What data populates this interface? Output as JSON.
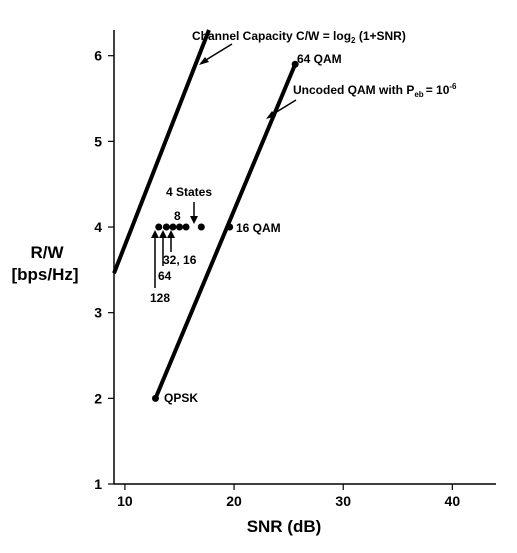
{
  "chart_data": {
    "type": "line",
    "xlabel": "SNR (dB)",
    "ylabel_line1": "R/W",
    "ylabel_line2": "[bps/Hz]",
    "xlim": [
      9,
      44
    ],
    "ylim": [
      1,
      6.3
    ],
    "x_ticks": [
      10,
      20,
      30,
      40
    ],
    "y_ticks": [
      1,
      2,
      3,
      4,
      5,
      6
    ],
    "x_tick_labels": [
      "10",
      "20",
      "30",
      "40"
    ],
    "y_tick_labels": [
      "1",
      "2",
      "3",
      "4",
      "5",
      "6"
    ],
    "grid": false,
    "series": [
      {
        "key": "capacity",
        "x": [
          9,
          17.7
        ],
        "y": [
          3.46,
          6.3
        ]
      },
      {
        "key": "uncoded",
        "x": [
          12.8,
          25.6
        ],
        "y": [
          2,
          5.9
        ]
      }
    ],
    "points": [
      {
        "key": "qpsk",
        "x": 12.8,
        "y": 2,
        "label": "QPSK"
      },
      {
        "key": "qam16",
        "x": 19.6,
        "y": 4,
        "label": "16 QAM"
      },
      {
        "key": "qam64",
        "x": 25.6,
        "y": 5.9,
        "label": "64 QAM"
      },
      {
        "key": "tcm128",
        "x": 13.1,
        "y": 4
      },
      {
        "key": "tcm64",
        "x": 13.8,
        "y": 4
      },
      {
        "key": "tcm32",
        "x": 14.4,
        "y": 4
      },
      {
        "key": "tcm16",
        "x": 15.0,
        "y": 4
      },
      {
        "key": "tcm8",
        "x": 15.6,
        "y": 4
      },
      {
        "key": "tcm4",
        "x": 17.0,
        "y": 4
      }
    ],
    "annotations": {
      "capacity_label": "Channel Capacity C/W = log",
      "capacity_sub": "2",
      "capacity_rest": " (1+SNR)",
      "uncoded_label": "Uncoded QAM with P",
      "uncoded_sub": "eb",
      "uncoded_eq": "= 10",
      "uncoded_sup": "-6",
      "states_4": "4 States",
      "states_8": "8",
      "states_32_16": "32, 16",
      "states_64": "64",
      "states_128": "128"
    }
  }
}
